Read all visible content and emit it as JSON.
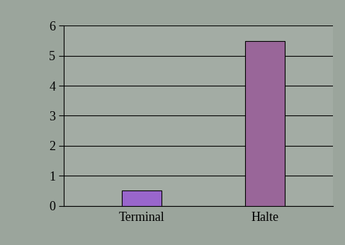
{
  "chart_data": {
    "type": "bar",
    "categories": [
      "Terminal",
      "Halte"
    ],
    "values": [
      0.5,
      5.5
    ],
    "colors": [
      "#9966cc",
      "#996699"
    ],
    "ylim": [
      0,
      6
    ],
    "yticks": [
      0,
      1,
      2,
      3,
      4,
      5,
      6
    ],
    "grid": true
  }
}
